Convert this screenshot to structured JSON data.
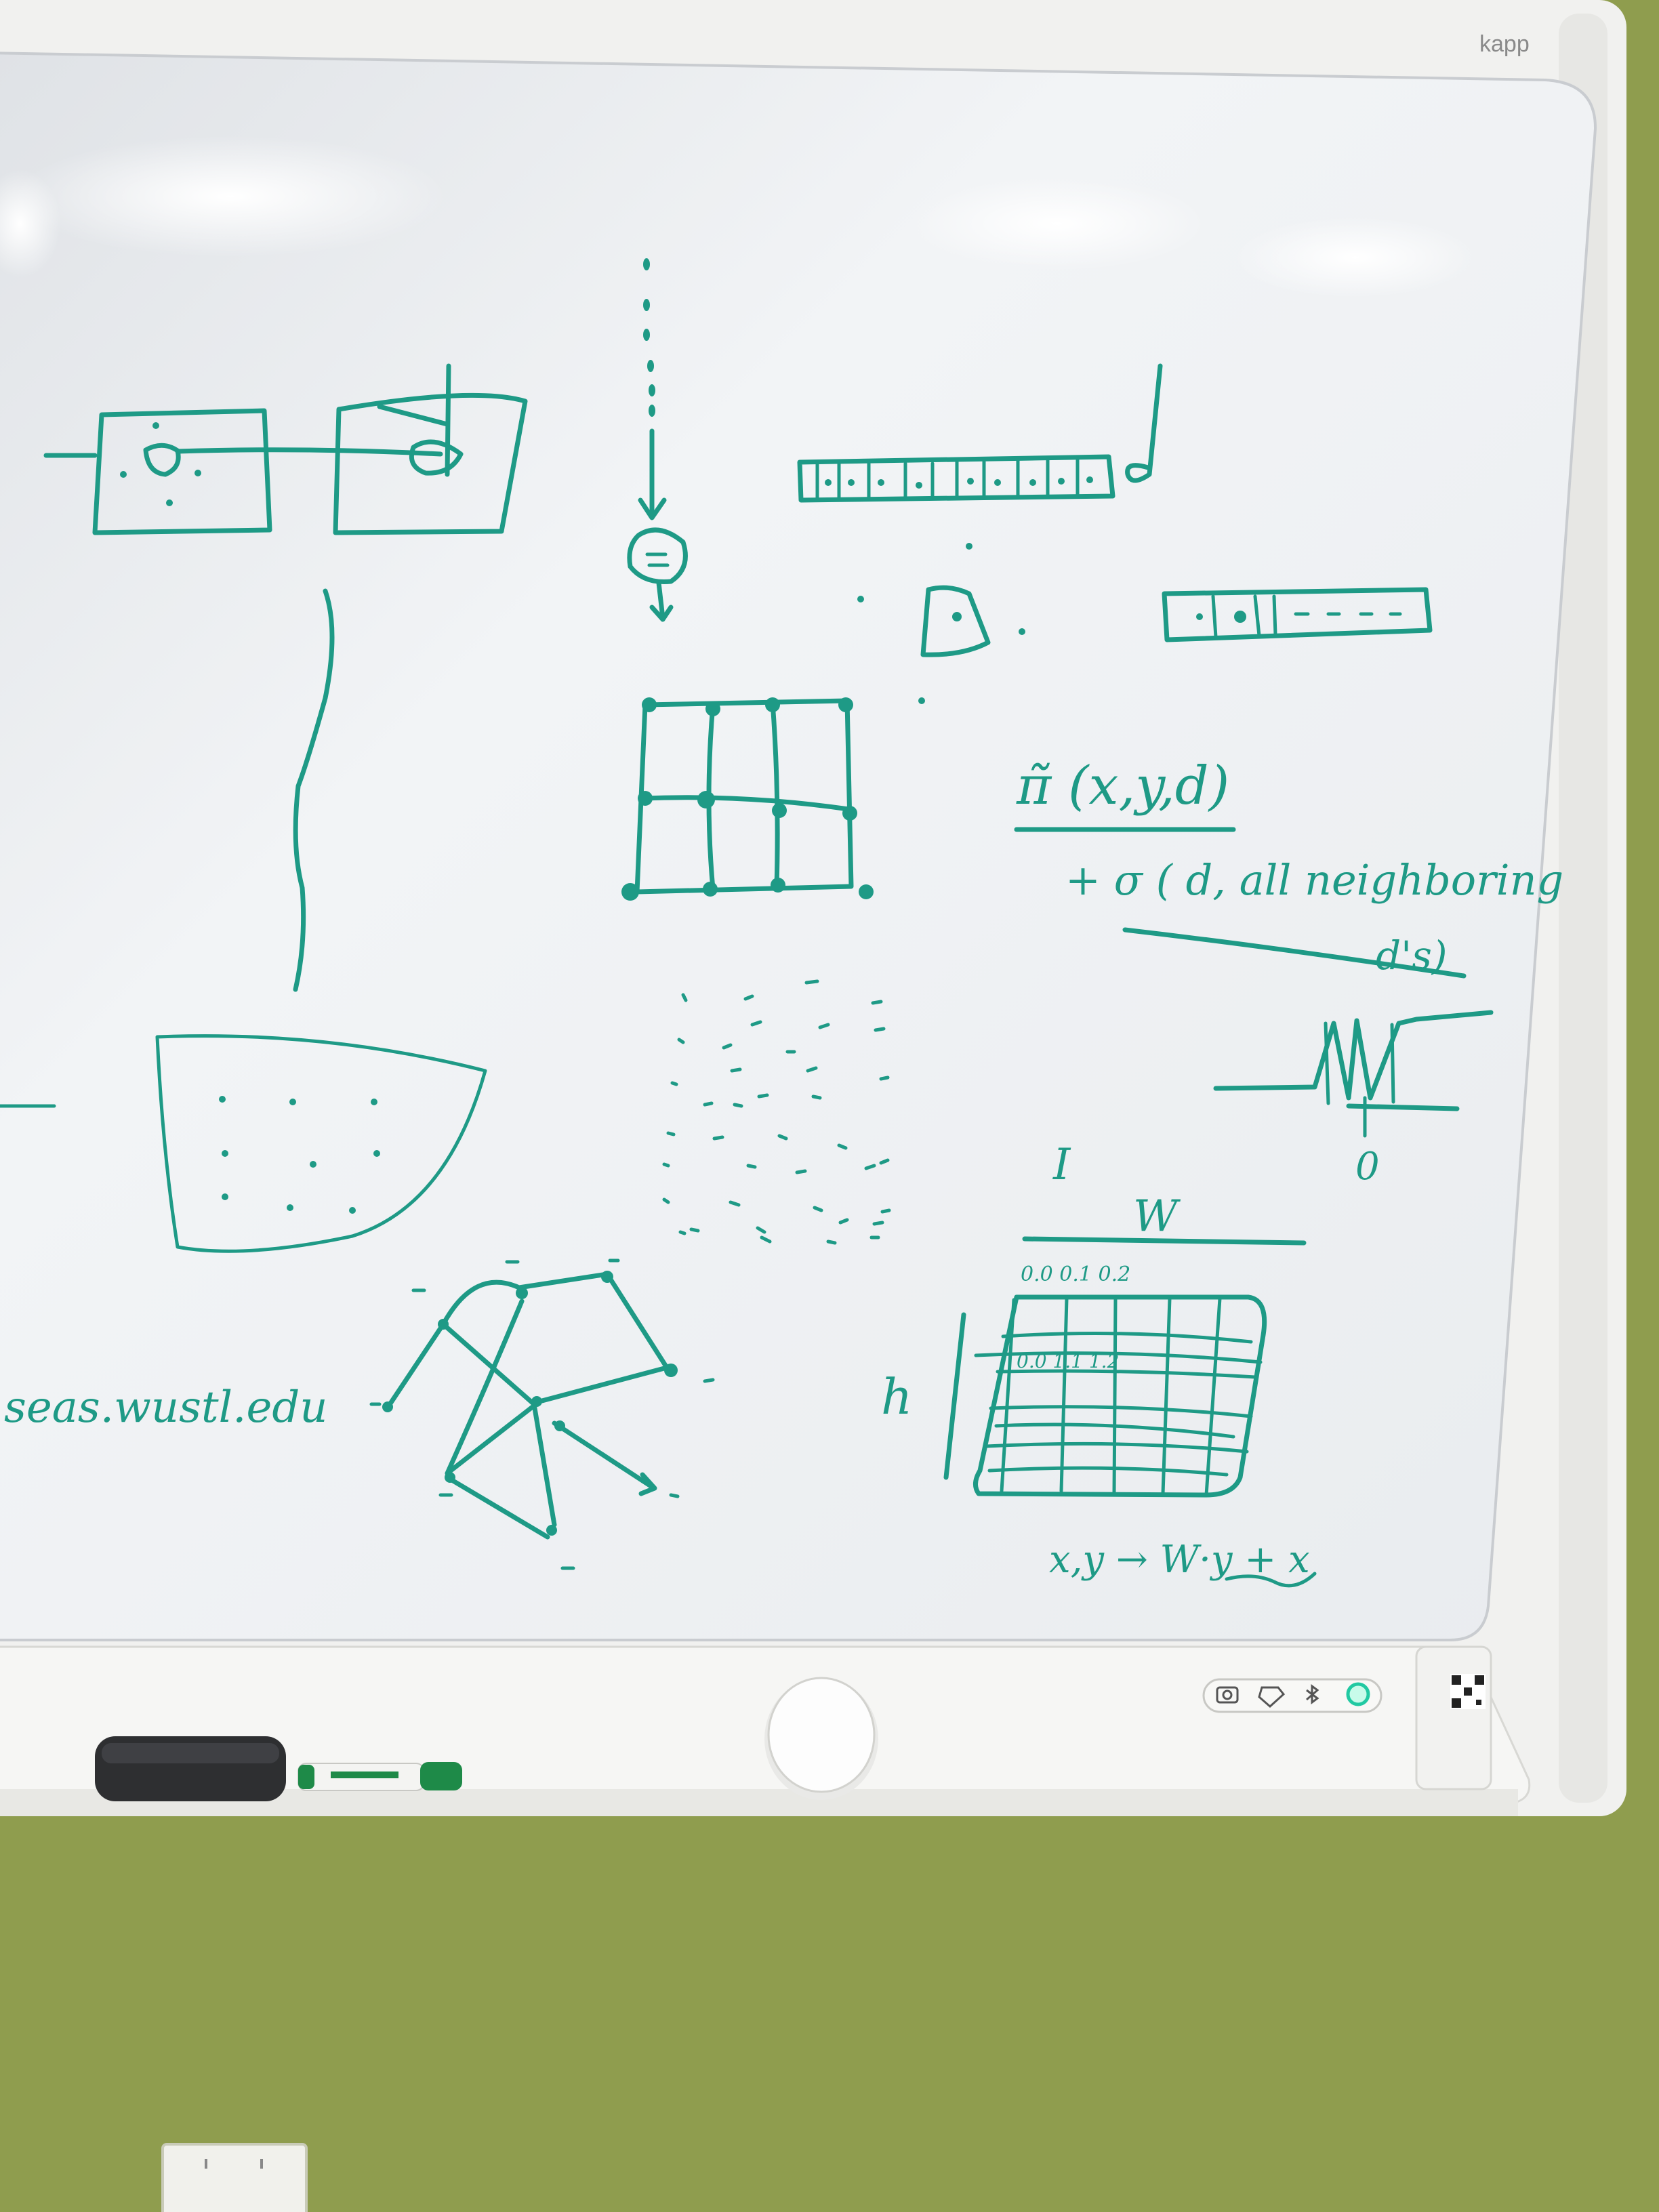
{
  "board": {
    "brand": "kapp"
  },
  "writing": {
    "pi_expr": "π̃ (x,y,d)",
    "sigma_expr": "+ σ ( d, all neighboring",
    "sigma_expr_2": "d's)",
    "zero": "0",
    "i_label": "I",
    "w_label": "W",
    "h_label": "h",
    "grid_vals_top": "0.0  0.1  0.2",
    "grid_vals_mid": "0.0  1.1  1.2",
    "formula": "x,y → W·y + x",
    "url_note": "seas.wustl.edu"
  },
  "tray": {
    "marker_label": "marker",
    "icons": [
      "camera-icon",
      "tag-icon",
      "bluetooth-icon",
      "power-light-icon"
    ]
  },
  "colors": {
    "ink": "#1e9a86",
    "wall": "#8f9d4e",
    "frame": "#f4f4f2"
  }
}
